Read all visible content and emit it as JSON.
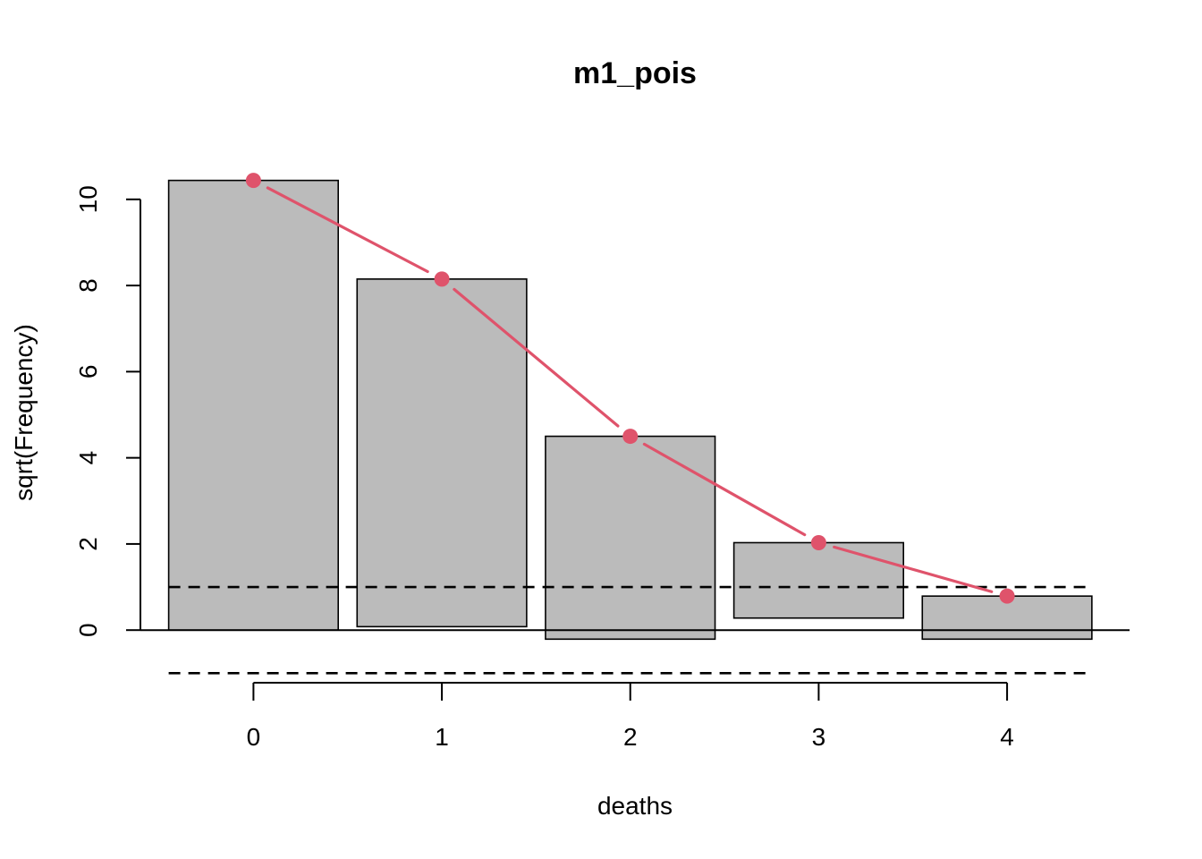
{
  "chart_data": {
    "type": "bar",
    "title": "m1_pois",
    "xlabel": "deaths",
    "ylabel": "sqrt(Frequency)",
    "categories": [
      "0",
      "1",
      "2",
      "3",
      "4"
    ],
    "series": [
      {
        "kind": "hanging-bar",
        "top": [
          10.44,
          8.15,
          4.5,
          2.03,
          0.79
        ],
        "bottom": [
          0.0,
          0.08,
          -0.21,
          0.28,
          -0.21
        ]
      },
      {
        "kind": "expected-line",
        "values": [
          10.44,
          8.15,
          4.5,
          2.03,
          0.79
        ]
      }
    ],
    "reference_lines": [
      1,
      -1
    ],
    "yticks": [
      0,
      2,
      4,
      6,
      8,
      10
    ],
    "ylim": [
      -1.45,
      11.45
    ],
    "xlim": [
      -0.6,
      4.65
    ],
    "grid": false,
    "colors": {
      "bar": "#bbbbbb",
      "line": "#df536b",
      "axis": "#000000"
    }
  }
}
